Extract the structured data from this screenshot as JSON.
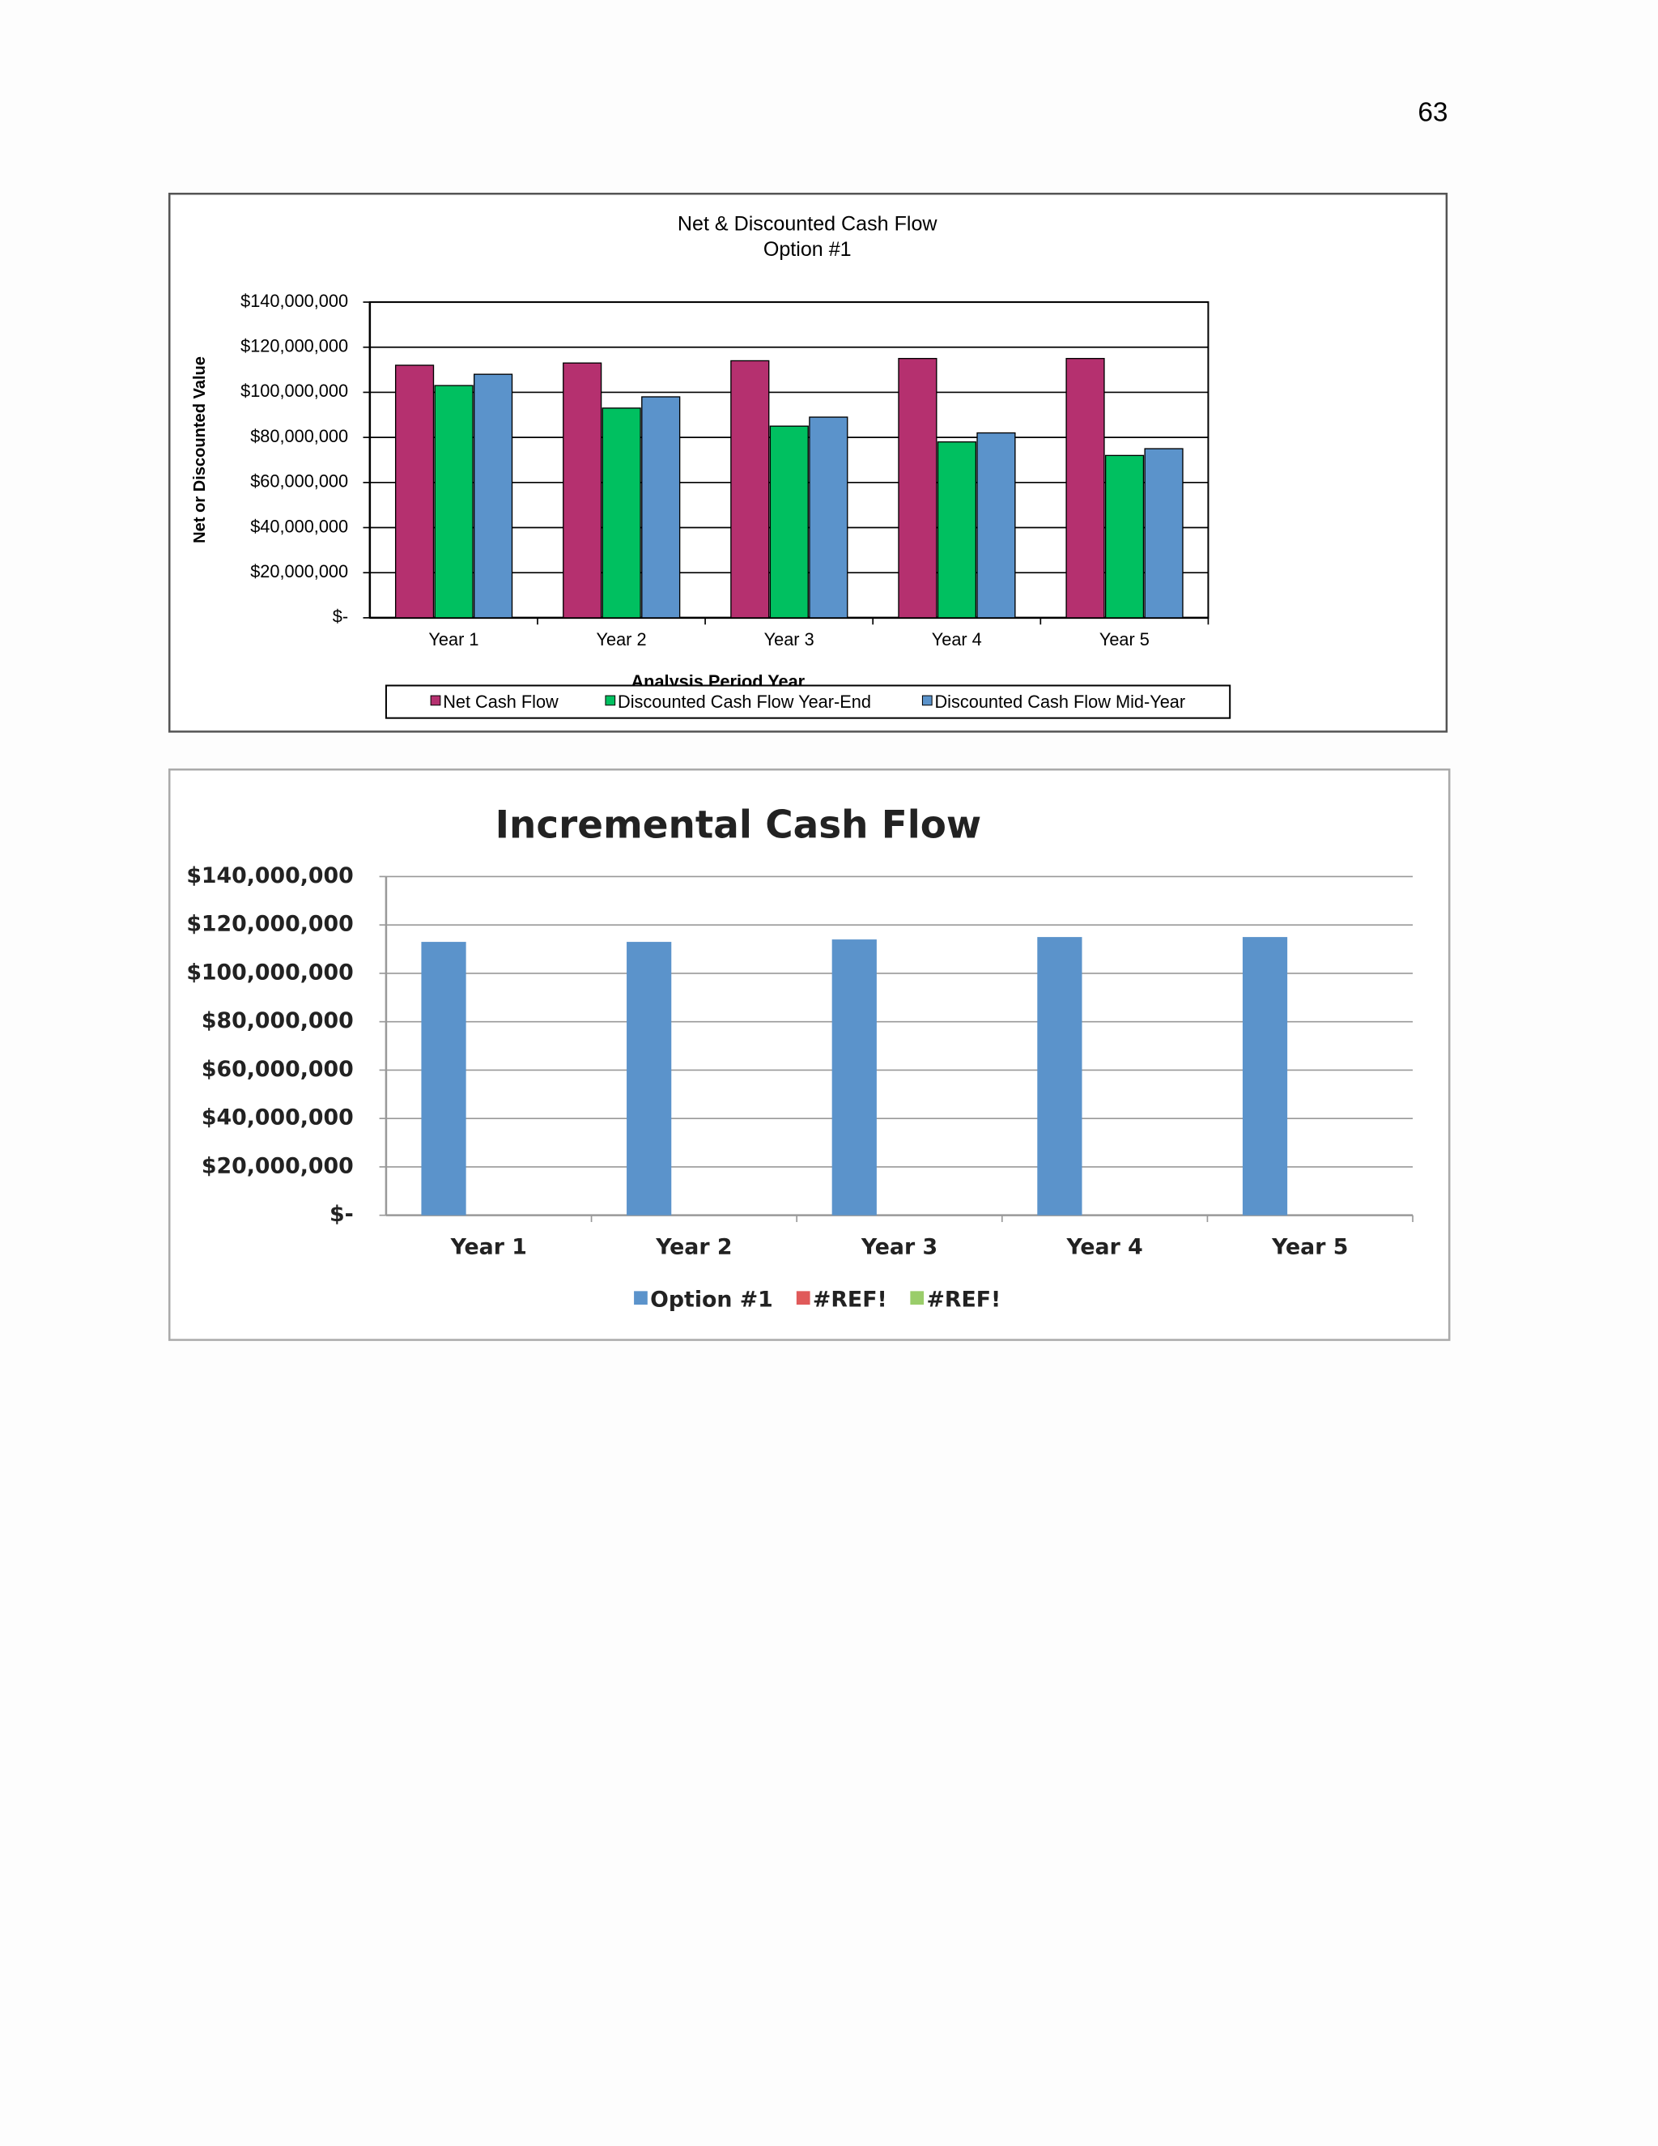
{
  "page_number": "63",
  "chart_data": [
    {
      "type": "bar",
      "title": "Net & Discounted Cash Flow",
      "subtitle": "Option #1",
      "y_label": "Net or Discounted Value",
      "x_label": "Analysis Period Year",
      "categories": [
        "Year 1",
        "Year 2",
        "Year 3",
        "Year 4",
        "Year 5"
      ],
      "series": [
        {
          "name": "Net Cash Flow",
          "color": "#b5306f",
          "values": [
            112000000,
            113000000,
            114000000,
            115000000,
            115000000
          ]
        },
        {
          "name": "Discounted Cash Flow Year-End",
          "color": "#00c060",
          "values": [
            103000000,
            93000000,
            85000000,
            78000000,
            72000000
          ]
        },
        {
          "name": "Discounted Cash Flow Mid-Year",
          "color": "#5b93cb",
          "values": [
            108000000,
            98000000,
            89000000,
            82000000,
            75000000
          ]
        }
      ],
      "ylim": [
        0,
        140000000
      ],
      "yticks": [
        {
          "value": 0,
          "label": "$-"
        },
        {
          "value": 20000000,
          "label": "$20,000,000"
        },
        {
          "value": 40000000,
          "label": "$40,000,000"
        },
        {
          "value": 60000000,
          "label": "$60,000,000"
        },
        {
          "value": 80000000,
          "label": "$80,000,000"
        },
        {
          "value": 100000000,
          "label": "$100,000,000"
        },
        {
          "value": 120000000,
          "label": "$120,000,000"
        },
        {
          "value": 140000000,
          "label": "$140,000,000"
        }
      ],
      "grid": true,
      "legend": "bottom"
    },
    {
      "type": "bar",
      "title": "Incremental Cash Flow",
      "categories": [
        "Year 1",
        "Year 2",
        "Year 3",
        "Year 4",
        "Year 5"
      ],
      "series": [
        {
          "name": "Option #1",
          "color": "#5b93cb",
          "values": [
            113000000,
            113000000,
            114000000,
            115000000,
            115000000
          ]
        },
        {
          "name": "#REF!",
          "color": "#e05a5a",
          "values": [
            null,
            null,
            null,
            null,
            null
          ]
        },
        {
          "name": "#REF!",
          "color": "#9acd6a",
          "values": [
            null,
            null,
            null,
            null,
            null
          ]
        }
      ],
      "ylim": [
        0,
        140000000
      ],
      "yticks": [
        {
          "value": 0,
          "label": "$-"
        },
        {
          "value": 20000000,
          "label": "$20,000,000"
        },
        {
          "value": 40000000,
          "label": "$40,000,000"
        },
        {
          "value": 60000000,
          "label": "$60,000,000"
        },
        {
          "value": 80000000,
          "label": "$80,000,000"
        },
        {
          "value": 100000000,
          "label": "$100,000,000"
        },
        {
          "value": 120000000,
          "label": "$120,000,000"
        },
        {
          "value": 140000000,
          "label": "$140,000,000"
        }
      ],
      "grid": true,
      "legend": "bottom"
    }
  ]
}
